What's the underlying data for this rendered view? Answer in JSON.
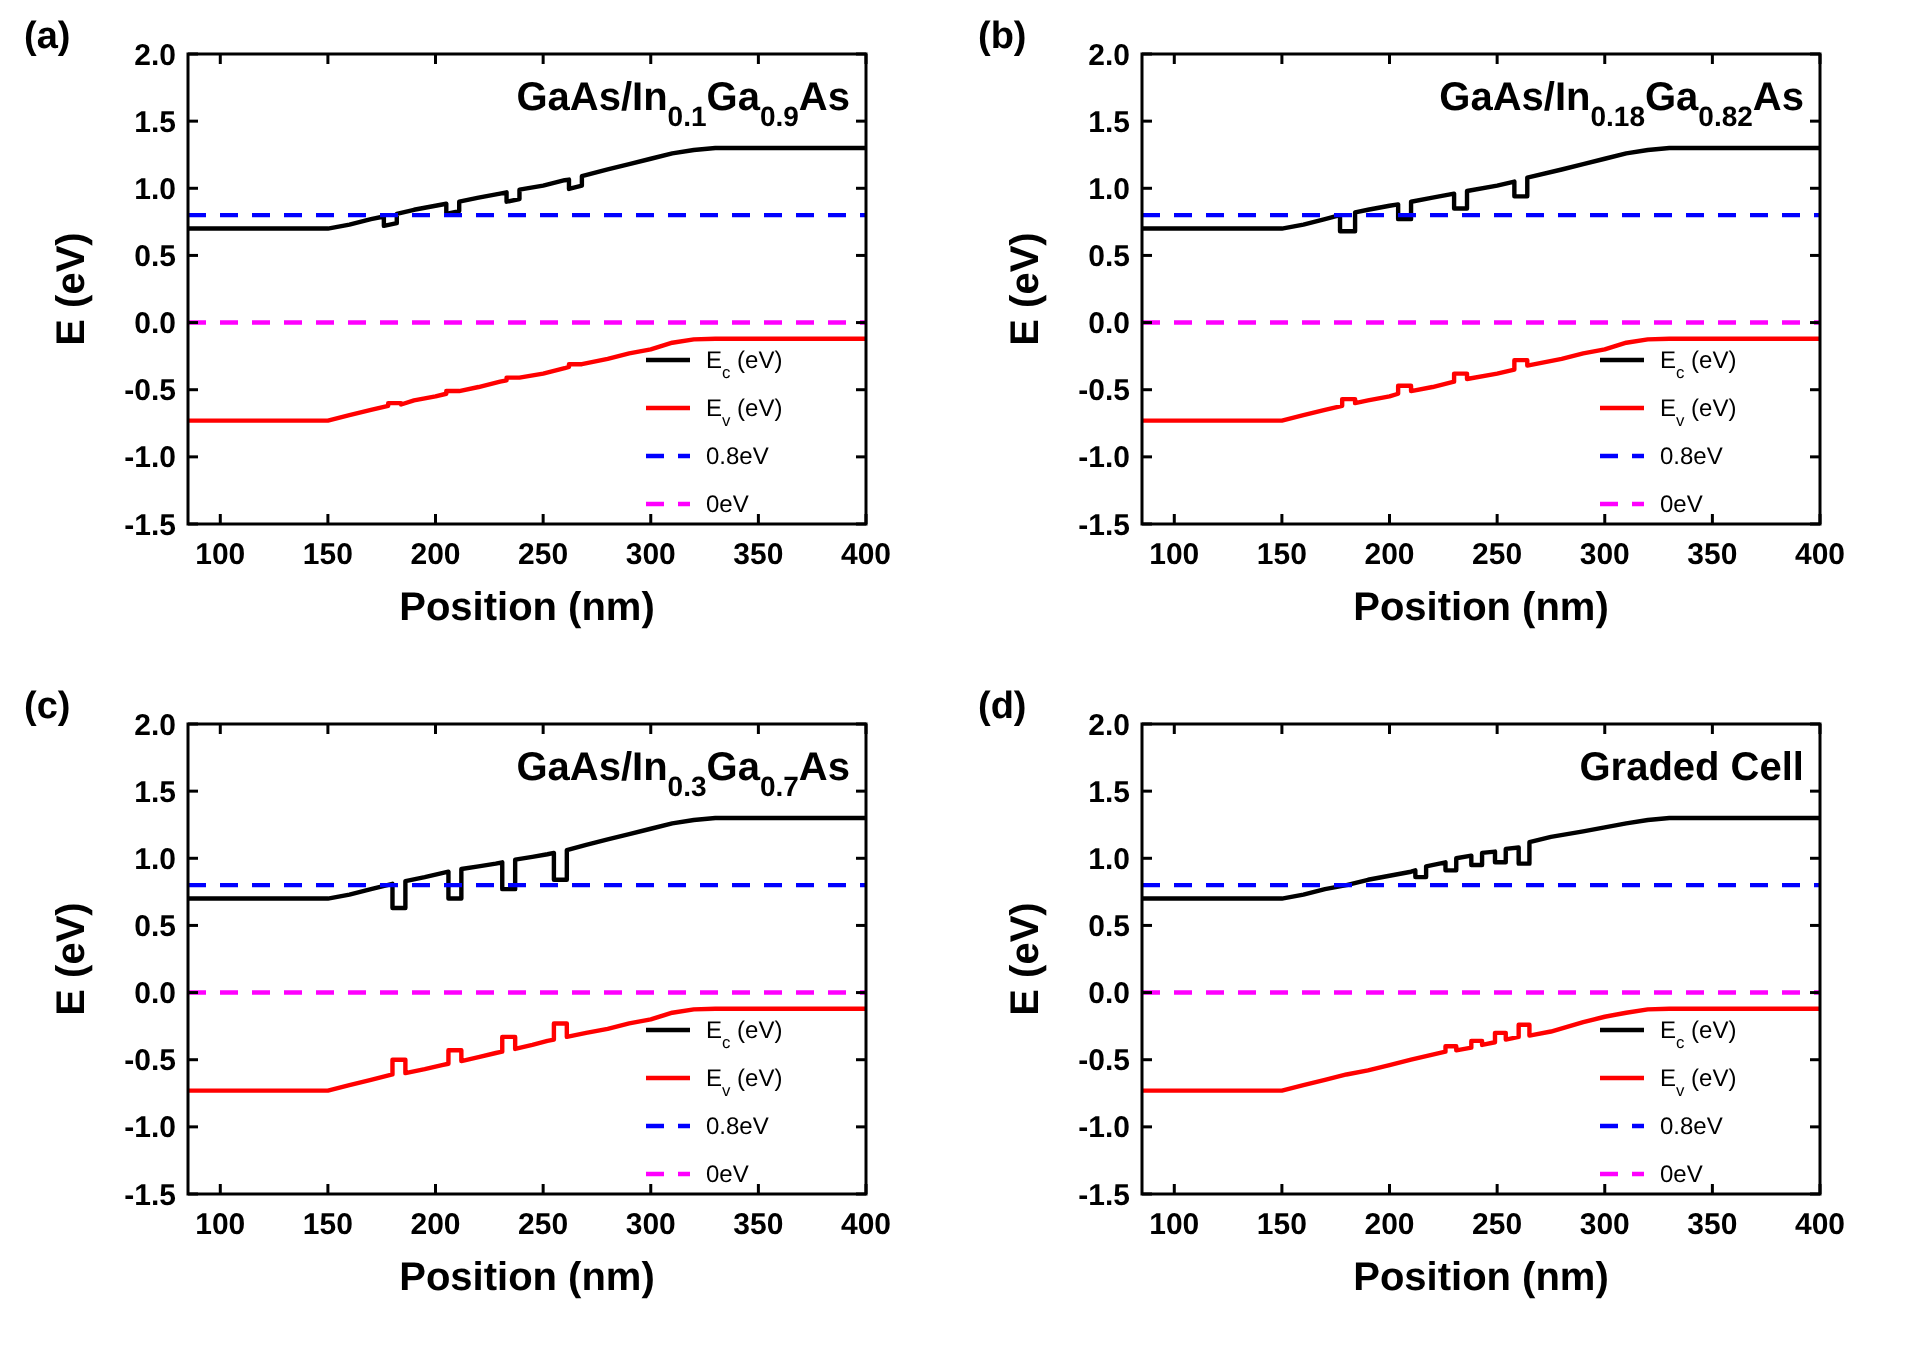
{
  "chart_data": [
    {
      "type": "line",
      "title": "(a)",
      "subtitle": "GaAs/In$_{0.1}$Ga$_{0.9}$As",
      "xlabel": "Position (nm)",
      "ylabel": "E (eV)",
      "xlim": [
        85,
        400
      ],
      "xticks": [
        100,
        150,
        200,
        250,
        300,
        350,
        400
      ],
      "ylim": [
        -1.5,
        2.0
      ],
      "yticks": [
        {
          "value": 2,
          "label": "2.0"
        },
        {
          "value": 1.5,
          "label": "1.5"
        },
        {
          "value": 1,
          "label": "1.0"
        },
        {
          "value": 0.5,
          "label": "0.5"
        },
        {
          "value": 0,
          "label": "0.0"
        },
        {
          "value": -0.5,
          "label": "-0.5"
        },
        {
          "value": -1,
          "label": "-1.0"
        },
        {
          "value": -1.5,
          "label": "-1.5"
        }
      ],
      "grid": false,
      "legend": "bottom right",
      "series": [
        {
          "name": "E$_{c}$ (eV)",
          "color": "#000000",
          "x": [
            85,
            150,
            160,
            170,
            176,
            176,
            182,
            182,
            190,
            200,
            205,
            205,
            211,
            211,
            220,
            230,
            233,
            233,
            239,
            239,
            250,
            260,
            262,
            262,
            268,
            268,
            280,
            290,
            300,
            310,
            320,
            330,
            400
          ],
          "values": [
            0.7,
            0.7,
            0.73,
            0.77,
            0.79,
            0.72,
            0.74,
            0.81,
            0.84,
            0.87,
            0.885,
            0.81,
            0.83,
            0.9,
            0.93,
            0.96,
            0.97,
            0.9,
            0.92,
            0.99,
            1.02,
            1.06,
            1.065,
            0.995,
            1.02,
            1.09,
            1.14,
            1.18,
            1.22,
            1.26,
            1.285,
            1.3,
            1.3
          ]
        },
        {
          "name": "E$_{v}$ (eV)",
          "color": "#ff0000",
          "x": [
            85,
            150,
            160,
            170,
            178,
            178,
            184,
            184,
            190,
            200,
            205,
            205,
            211,
            211,
            220,
            230,
            233,
            233,
            239,
            239,
            250,
            260,
            262,
            262,
            268,
            268,
            280,
            290,
            300,
            310,
            320,
            330,
            400
          ],
          "values": [
            -0.73,
            -0.73,
            -0.69,
            -0.65,
            -0.62,
            -0.6,
            -0.6,
            -0.61,
            -0.58,
            -0.55,
            -0.53,
            -0.51,
            -0.51,
            -0.51,
            -0.48,
            -0.44,
            -0.43,
            -0.41,
            -0.41,
            -0.41,
            -0.38,
            -0.34,
            -0.33,
            -0.31,
            -0.31,
            -0.31,
            -0.27,
            -0.23,
            -0.2,
            -0.15,
            -0.125,
            -0.12,
            -0.12
          ]
        },
        {
          "name": "0.8eV",
          "color": "#0000ff",
          "line_style": "dashed",
          "x": [
            85,
            400
          ],
          "values": [
            0.8,
            0.8
          ]
        },
        {
          "name": "0eV",
          "color": "#ff00ff",
          "line_style": "dashed",
          "x": [
            85,
            400
          ],
          "values": [
            0,
            0
          ]
        }
      ]
    },
    {
      "type": "line",
      "title": "(b)",
      "subtitle": "GaAs/In$_{0.18}$Ga$_{0.82}$As",
      "xlabel": "Position (nm)",
      "ylabel": "E (eV)",
      "xlim": [
        85,
        400
      ],
      "xticks": [
        100,
        150,
        200,
        250,
        300,
        350,
        400
      ],
      "ylim": [
        -1.5,
        2.0
      ],
      "yticks": [
        {
          "value": 2,
          "label": "2.0"
        },
        {
          "value": 1.5,
          "label": "1.5"
        },
        {
          "value": 1,
          "label": "1.0"
        },
        {
          "value": 0.5,
          "label": "0.5"
        },
        {
          "value": 0,
          "label": "0.0"
        },
        {
          "value": -0.5,
          "label": "-0.5"
        },
        {
          "value": -1,
          "label": "-1.0"
        },
        {
          "value": -1.5,
          "label": "-1.5"
        }
      ],
      "grid": false,
      "legend": "bottom right",
      "series": [
        {
          "name": "E$_{c}$ (eV)",
          "color": "#000000",
          "x": [
            85,
            150,
            160,
            170,
            177,
            177,
            184,
            184,
            190,
            200,
            204,
            204,
            210,
            210,
            220,
            230,
            230,
            230,
            236,
            236,
            250,
            258,
            258,
            258,
            264,
            264,
            280,
            290,
            300,
            310,
            320,
            330,
            400
          ],
          "values": [
            0.7,
            0.7,
            0.73,
            0.77,
            0.8,
            0.68,
            0.68,
            0.82,
            0.84,
            0.87,
            0.88,
            0.77,
            0.77,
            0.9,
            0.93,
            0.96,
            0.96,
            0.85,
            0.85,
            0.98,
            1.02,
            1.05,
            1.05,
            0.94,
            0.94,
            1.08,
            1.14,
            1.18,
            1.22,
            1.26,
            1.285,
            1.3,
            1.3
          ]
        },
        {
          "name": "E$_{v}$ (eV)",
          "color": "#ff0000",
          "x": [
            85,
            150,
            160,
            170,
            178,
            178,
            184,
            184,
            190,
            200,
            204,
            204,
            210,
            210,
            220,
            230,
            230,
            230,
            236,
            236,
            250,
            258,
            258,
            258,
            264,
            264,
            280,
            290,
            300,
            310,
            320,
            330,
            400
          ],
          "values": [
            -0.73,
            -0.73,
            -0.69,
            -0.65,
            -0.62,
            -0.57,
            -0.57,
            -0.6,
            -0.58,
            -0.55,
            -0.53,
            -0.47,
            -0.47,
            -0.51,
            -0.48,
            -0.44,
            -0.44,
            -0.38,
            -0.38,
            -0.42,
            -0.38,
            -0.35,
            -0.35,
            -0.28,
            -0.28,
            -0.32,
            -0.27,
            -0.23,
            -0.2,
            -0.15,
            -0.125,
            -0.12,
            -0.12
          ]
        },
        {
          "name": "0.8eV",
          "color": "#0000ff",
          "line_style": "dashed",
          "x": [
            85,
            400
          ],
          "values": [
            0.8,
            0.8
          ]
        },
        {
          "name": "0eV",
          "color": "#ff00ff",
          "line_style": "dashed",
          "x": [
            85,
            400
          ],
          "values": [
            0,
            0
          ]
        }
      ]
    },
    {
      "type": "line",
      "title": "(c)",
      "subtitle": "GaAs/In$_{0.3}$Ga$_{0.7}$As",
      "xlabel": "Position (nm)",
      "ylabel": "E (eV)",
      "xlim": [
        85,
        400
      ],
      "xticks": [
        100,
        150,
        200,
        250,
        300,
        350,
        400
      ],
      "ylim": [
        -1.5,
        2.0
      ],
      "yticks": [
        {
          "value": 2,
          "label": "2.0"
        },
        {
          "value": 1.5,
          "label": "1.5"
        },
        {
          "value": 1,
          "label": "1.0"
        },
        {
          "value": 0.5,
          "label": "0.5"
        },
        {
          "value": 0,
          "label": "0.0"
        },
        {
          "value": -0.5,
          "label": "-0.5"
        },
        {
          "value": -1,
          "label": "-1.0"
        },
        {
          "value": -1.5,
          "label": "-1.5"
        }
      ],
      "grid": false,
      "legend": "bottom right",
      "series": [
        {
          "name": "E$_{c}$ (eV)",
          "color": "#000000",
          "x": [
            85,
            150,
            160,
            170,
            180,
            180,
            186,
            186,
            195,
            203,
            206,
            206,
            212,
            212,
            220,
            228,
            231,
            231,
            237,
            237,
            245,
            252,
            255,
            255,
            261,
            261,
            270,
            280,
            290,
            300,
            310,
            320,
            330,
            400
          ],
          "values": [
            0.7,
            0.7,
            0.73,
            0.77,
            0.81,
            0.63,
            0.63,
            0.83,
            0.86,
            0.89,
            0.9,
            0.7,
            0.7,
            0.92,
            0.94,
            0.96,
            0.97,
            0.77,
            0.77,
            0.99,
            1.01,
            1.03,
            1.04,
            0.84,
            0.84,
            1.06,
            1.1,
            1.14,
            1.18,
            1.22,
            1.26,
            1.285,
            1.3,
            1.3
          ]
        },
        {
          "name": "E$_{v}$ (eV)",
          "color": "#ff0000",
          "x": [
            85,
            150,
            160,
            170,
            180,
            180,
            186,
            186,
            195,
            203,
            206,
            206,
            212,
            212,
            220,
            228,
            231,
            231,
            237,
            237,
            245,
            252,
            255,
            255,
            261,
            261,
            270,
            280,
            290,
            300,
            310,
            320,
            330,
            400
          ],
          "values": [
            -0.73,
            -0.73,
            -0.69,
            -0.65,
            -0.61,
            -0.5,
            -0.5,
            -0.6,
            -0.57,
            -0.54,
            -0.53,
            -0.43,
            -0.43,
            -0.51,
            -0.48,
            -0.45,
            -0.44,
            -0.33,
            -0.33,
            -0.42,
            -0.39,
            -0.36,
            -0.35,
            -0.23,
            -0.23,
            -0.33,
            -0.3,
            -0.27,
            -0.23,
            -0.2,
            -0.15,
            -0.125,
            -0.12,
            -0.12
          ]
        },
        {
          "name": "0.8eV",
          "color": "#0000ff",
          "line_style": "dashed",
          "x": [
            85,
            400
          ],
          "values": [
            0.8,
            0.8
          ]
        },
        {
          "name": "0eV",
          "color": "#ff00ff",
          "line_style": "dashed",
          "x": [
            85,
            400
          ],
          "values": [
            0,
            0
          ]
        }
      ]
    },
    {
      "type": "line",
      "title": "(d)",
      "subtitle": "Graded Cell",
      "xlabel": "Position (nm)",
      "ylabel": "E (eV)",
      "xlim": [
        85,
        400
      ],
      "xticks": [
        100,
        150,
        200,
        250,
        300,
        350,
        400
      ],
      "ylim": [
        -1.5,
        2.0
      ],
      "yticks": [
        {
          "value": 2,
          "label": "2.0"
        },
        {
          "value": 1.5,
          "label": "1.5"
        },
        {
          "value": 1,
          "label": "1.0"
        },
        {
          "value": 0.5,
          "label": "0.5"
        },
        {
          "value": 0,
          "label": "0.0"
        },
        {
          "value": -0.5,
          "label": "-0.5"
        },
        {
          "value": -1,
          "label": "-1.0"
        },
        {
          "value": -1.5,
          "label": "-1.5"
        }
      ],
      "grid": false,
      "legend": "bottom right",
      "series": [
        {
          "name": "E$_{c}$ (eV)",
          "color": "#000000",
          "x": [
            85,
            150,
            160,
            170,
            180,
            190,
            200,
            210,
            212,
            212,
            217,
            217,
            226,
            226,
            231,
            231,
            238,
            238,
            243,
            243,
            249,
            249,
            254,
            254,
            260,
            260,
            265,
            265,
            275,
            290,
            300,
            310,
            320,
            330,
            400
          ],
          "values": [
            0.7,
            0.7,
            0.73,
            0.77,
            0.8,
            0.84,
            0.87,
            0.9,
            0.91,
            0.86,
            0.86,
            0.94,
            0.97,
            0.91,
            0.91,
            1.0,
            1.02,
            0.95,
            0.95,
            1.04,
            1.05,
            0.97,
            0.97,
            1.07,
            1.08,
            0.96,
            0.96,
            1.12,
            1.16,
            1.2,
            1.23,
            1.26,
            1.285,
            1.3,
            1.3
          ]
        },
        {
          "name": "E$_{v}$ (eV)",
          "color": "#ff0000",
          "x": [
            85,
            150,
            160,
            170,
            180,
            190,
            200,
            210,
            226,
            226,
            231,
            231,
            238,
            238,
            243,
            243,
            249,
            249,
            254,
            254,
            260,
            260,
            265,
            265,
            275,
            290,
            300,
            310,
            320,
            330,
            400
          ],
          "values": [
            -0.73,
            -0.73,
            -0.69,
            -0.65,
            -0.61,
            -0.58,
            -0.54,
            -0.5,
            -0.44,
            -0.4,
            -0.4,
            -0.43,
            -0.41,
            -0.36,
            -0.36,
            -0.39,
            -0.37,
            -0.3,
            -0.3,
            -0.35,
            -0.33,
            -0.24,
            -0.24,
            -0.32,
            -0.29,
            -0.22,
            -0.18,
            -0.15,
            -0.125,
            -0.12,
            -0.12
          ]
        },
        {
          "name": "0.8eV",
          "color": "#0000ff",
          "line_style": "dashed",
          "x": [
            85,
            400
          ],
          "values": [
            0.8,
            0.8
          ]
        },
        {
          "name": "0eV",
          "color": "#ff00ff",
          "line_style": "dashed",
          "x": [
            85,
            400
          ],
          "values": [
            0,
            0
          ]
        }
      ]
    }
  ]
}
